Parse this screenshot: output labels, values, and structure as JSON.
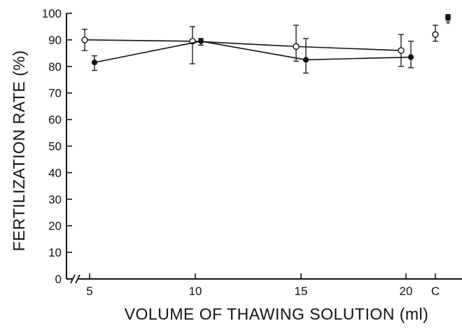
{
  "chart_data": {
    "type": "line",
    "xlabel": "VOLUME OF THAWING SOLUTION (ml)",
    "ylabel": "FERTILIZATION RATE (%)",
    "ylim": [
      0,
      100
    ],
    "y_ticks": [
      "0",
      "10",
      "20",
      "30",
      "40",
      "50",
      "60",
      "70",
      "80",
      "90",
      "100"
    ],
    "x_tick_labels": [
      "5",
      "10",
      "15",
      "20",
      "C"
    ],
    "x_axis_break": true,
    "grid": false,
    "legend": "none",
    "series": [
      {
        "marker": "open-circle",
        "points": [
          {
            "x": "5",
            "y": 90,
            "err_low": 86,
            "err_high": 94
          },
          {
            "x": "10",
            "y": 89.5,
            "err_low": 81,
            "err_high": 95
          },
          {
            "x": "15",
            "y": 87.5,
            "err_low": 82,
            "err_high": 95.5
          },
          {
            "x": "20",
            "y": 86,
            "err_low": 80,
            "err_high": 92
          }
        ],
        "control": {
          "x": "C",
          "y": 92,
          "err_low": 89.5,
          "err_high": 95.5
        }
      },
      {
        "marker": "filled-circle",
        "points": [
          {
            "x": "5",
            "y": 81.5,
            "err_low": 78.5,
            "err_high": 84
          },
          {
            "x": "10",
            "y": 89.5,
            "err_low": 88,
            "err_high": 90.5
          },
          {
            "x": "15",
            "y": 82.5,
            "err_low": 77.5,
            "err_high": 90.5
          },
          {
            "x": "20",
            "y": 83.5,
            "err_low": 79.5,
            "err_high": 89.5
          }
        ],
        "control": {
          "x": "C",
          "y": 98.5,
          "err_low": 97.5,
          "err_high": 99.5
        }
      }
    ],
    "annotations": [
      "*"
    ]
  }
}
